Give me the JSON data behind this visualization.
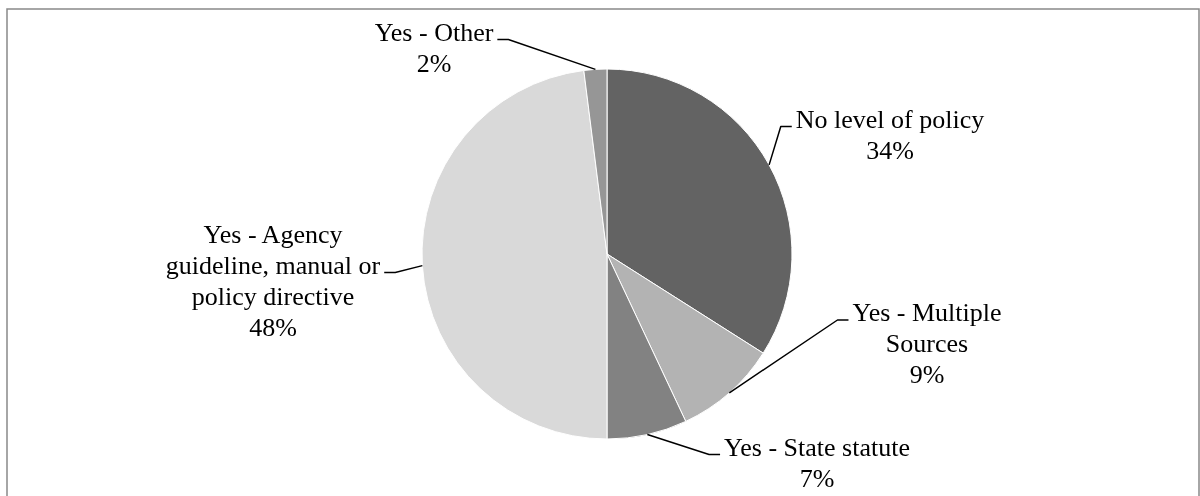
{
  "chart_data": {
    "type": "pie",
    "categories": [
      "No level of policy",
      "Yes - Multiple Sources",
      "Yes - State statute",
      "Yes - Agency guideline, manual or policy directive",
      "Yes - Other"
    ],
    "values": [
      34,
      9,
      7,
      48,
      2
    ],
    "value_labels": [
      "34%",
      "9%",
      "7%",
      "48%",
      "2%"
    ],
    "colors": [
      "#636363",
      "#b3b3b3",
      "#828282",
      "#d9d9d9",
      "#969696"
    ]
  }
}
